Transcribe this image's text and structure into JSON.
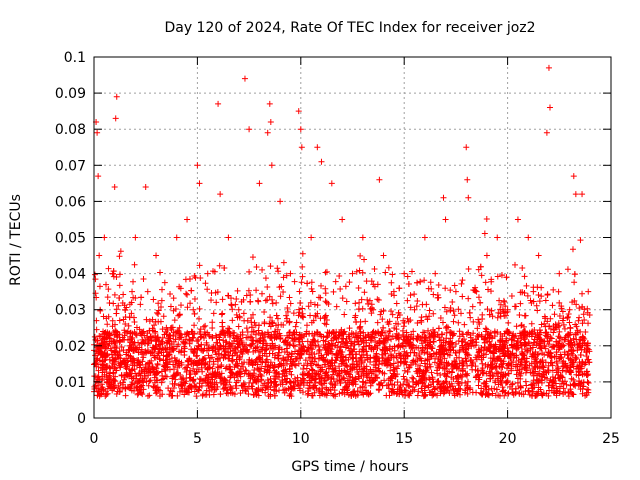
{
  "chart_data": {
    "type": "scatter",
    "title": "Day 120 of 2024, Rate Of TEC Index for receiver joz2",
    "xlabel": "GPS time / hours",
    "ylabel": "ROTI / TECUs",
    "xlim": [
      0,
      25
    ],
    "ylim": [
      0,
      0.1
    ],
    "xticks": [
      0,
      5,
      10,
      15,
      20,
      25
    ],
    "yticks": [
      0,
      0.01,
      0.02,
      0.03,
      0.04,
      0.05,
      0.06,
      0.07,
      0.08,
      0.09,
      0.1
    ],
    "grid": true,
    "marker": "+",
    "color": "#ff0000",
    "series": [
      {
        "name": "ROTI",
        "points_note": "dense band ~0.005-0.03 over 0-24 h; representative samples below",
        "x": [
          0.05,
          0.1,
          0.15,
          0.2,
          0.25,
          0.3,
          0.5,
          0.7,
          0.9,
          1.0,
          1.05,
          1.1,
          1.5,
          2.0,
          2.5,
          2.6,
          3.0,
          3.5,
          4.0,
          4.5,
          4.8,
          5.0,
          5.1,
          5.5,
          6.0,
          6.1,
          6.5,
          7.0,
          7.3,
          7.5,
          8.0,
          8.4,
          8.5,
          8.55,
          8.6,
          9.0,
          9.5,
          9.9,
          10.0,
          10.05,
          10.5,
          10.8,
          11.0,
          11.5,
          12.0,
          12.5,
          13.0,
          13.5,
          13.8,
          14.0,
          14.5,
          15.0,
          15.5,
          16.0,
          16.5,
          16.9,
          17.0,
          17.5,
          18.0,
          18.05,
          18.1,
          18.5,
          19.0,
          19.5,
          20.0,
          20.5,
          21.0,
          21.5,
          21.9,
          22.0,
          22.05,
          22.5,
          23.0,
          23.2,
          23.3,
          23.6,
          23.9
        ],
        "y": [
          0.015,
          0.082,
          0.079,
          0.067,
          0.045,
          0.03,
          0.05,
          0.02,
          0.04,
          0.064,
          0.083,
          0.089,
          0.03,
          0.05,
          0.064,
          0.035,
          0.045,
          0.025,
          0.05,
          0.055,
          0.03,
          0.07,
          0.065,
          0.04,
          0.087,
          0.062,
          0.05,
          0.03,
          0.094,
          0.08,
          0.065,
          0.079,
          0.087,
          0.082,
          0.07,
          0.06,
          0.04,
          0.085,
          0.08,
          0.075,
          0.05,
          0.075,
          0.071,
          0.065,
          0.055,
          0.04,
          0.05,
          0.03,
          0.066,
          0.045,
          0.035,
          0.04,
          0.03,
          0.05,
          0.04,
          0.061,
          0.055,
          0.035,
          0.075,
          0.066,
          0.061,
          0.035,
          0.045,
          0.05,
          0.03,
          0.055,
          0.05,
          0.045,
          0.079,
          0.097,
          0.086,
          0.04,
          0.03,
          0.067,
          0.062,
          0.062,
          0.035
        ]
      }
    ]
  }
}
